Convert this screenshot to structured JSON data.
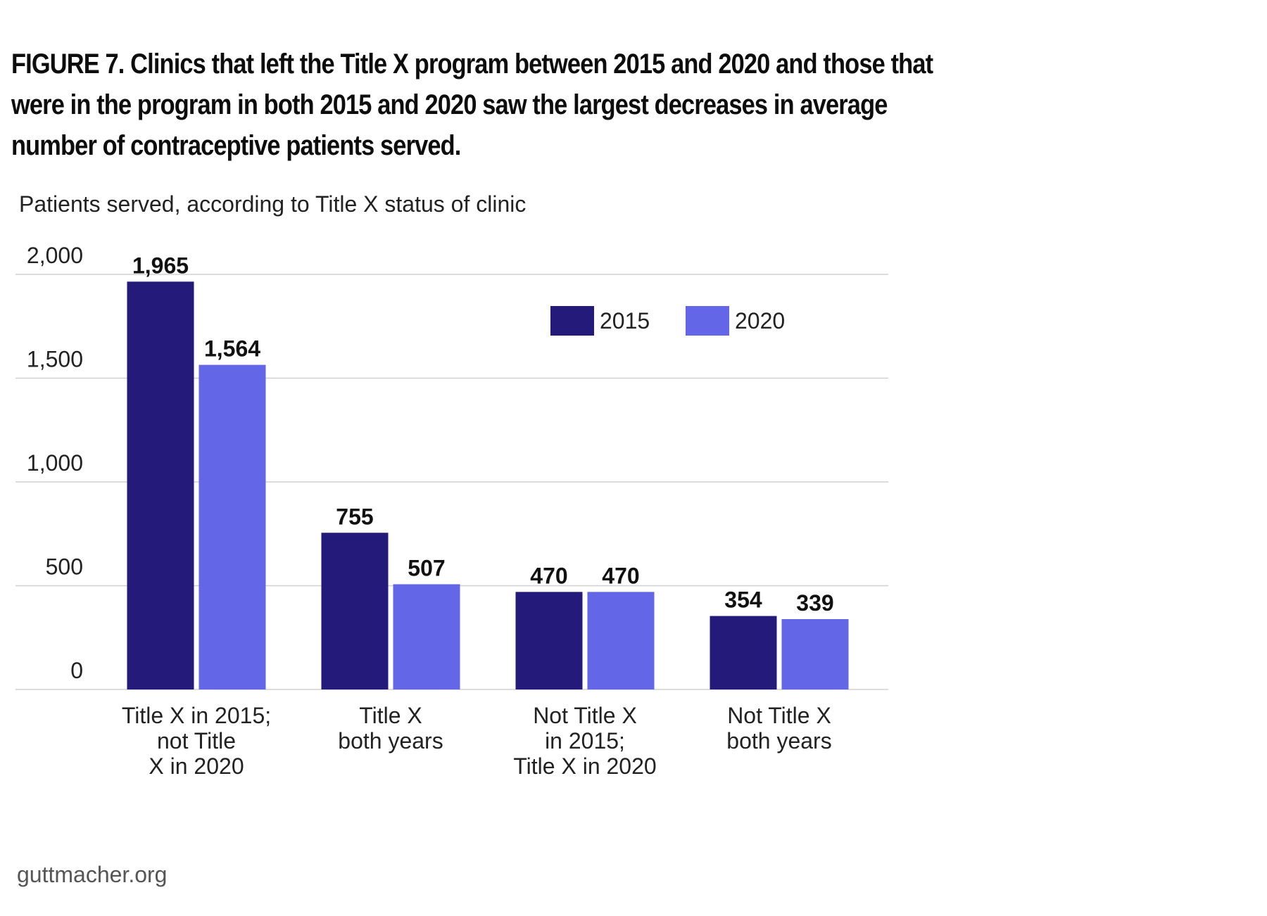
{
  "header": {
    "title": "FIGURE 7. Clinics that left the Title X program between 2015 and 2020 and those that were in the program in both 2015 and 2020 saw the largest decreases in average number of contraceptive patients served.",
    "subtitle": "Patients served, according to Title X status of clinic"
  },
  "footer": {
    "source": "guttmacher.org"
  },
  "colors": {
    "series_2015": "#231a7a",
    "series_2020": "#6366e6",
    "gridline": "#d0d0d0"
  },
  "chart_data": {
    "type": "bar",
    "title": "FIGURE 7. Clinics that left the Title X program between 2015 and 2020 and those that were in the program in both 2015 and 2020 saw the largest decreases in average number of contraceptive patients served.",
    "subtitle": "Patients served, according to Title X status of clinic",
    "xlabel": "",
    "ylabel": "",
    "ylim": [
      0,
      2000
    ],
    "yticks": [
      0,
      500,
      1000,
      1500,
      2000
    ],
    "ytick_labels": [
      "0",
      "500",
      "1,000",
      "1,500",
      "2,000"
    ],
    "grid": true,
    "legend_position": "top-right",
    "categories": [
      [
        "Title X in 2015;",
        "not Title",
        "X in 2020"
      ],
      [
        "Title X",
        "both years"
      ],
      [
        "Not Title X",
        "in 2015;",
        "Title X in 2020"
      ],
      [
        "Not Title X",
        "both years"
      ]
    ],
    "series": [
      {
        "name": "2015",
        "color": "#231a7a",
        "values": [
          1965,
          755,
          470,
          354
        ],
        "labels": [
          "1,965",
          "755",
          "470",
          "354"
        ]
      },
      {
        "name": "2020",
        "color": "#6366e6",
        "values": [
          1564,
          507,
          470,
          339
        ],
        "labels": [
          "1,564",
          "507",
          "470",
          "339"
        ]
      }
    ]
  }
}
